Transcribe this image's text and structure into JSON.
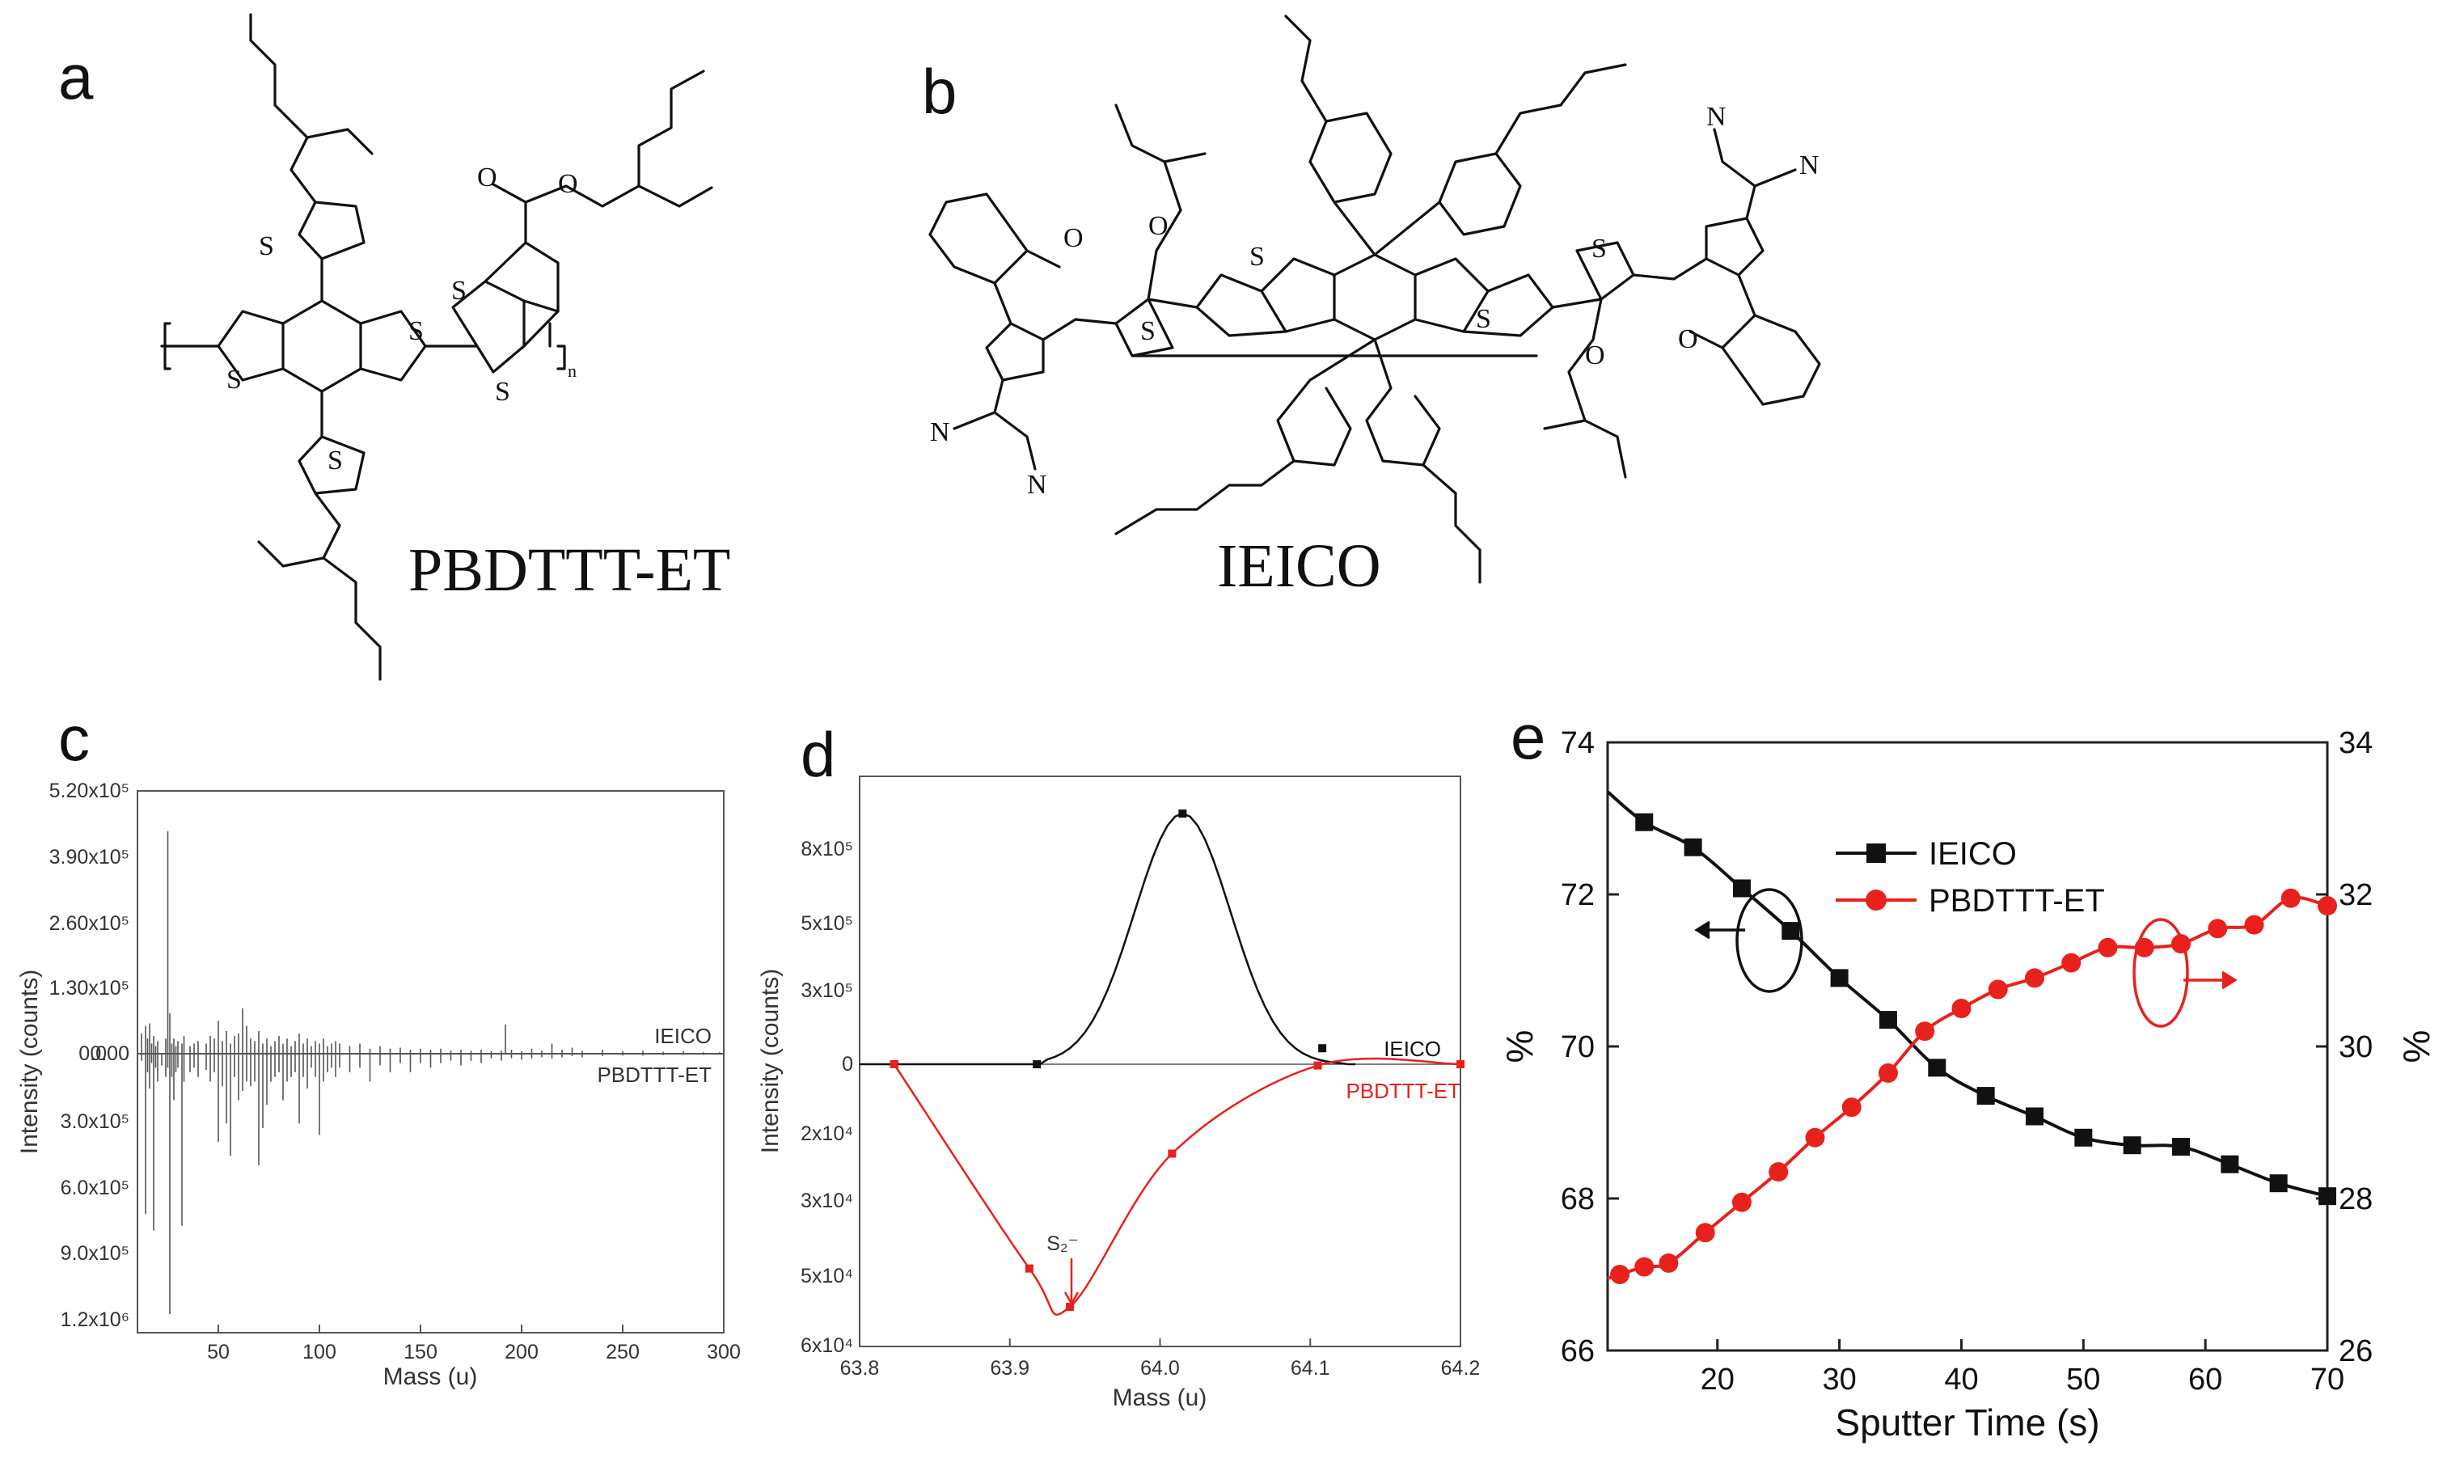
{
  "panels": {
    "a": {
      "label": "a",
      "compound": "PBDTTT-ET",
      "atoms": {
        "S": "S",
        "O": "O",
        "n": "n"
      }
    },
    "b": {
      "label": "b",
      "compound": "IEICO",
      "atoms": {
        "S": "S",
        "O": "O",
        "N": "N"
      }
    },
    "c": {
      "label": "c"
    },
    "d": {
      "label": "d"
    },
    "e": {
      "label": "e"
    }
  },
  "colors": {
    "black": "#111111",
    "red": "#e8211c",
    "gray": "#555555"
  },
  "chart_data": [
    {
      "id": "c",
      "type": "bar",
      "xlabel": "Mass (u)",
      "ylabel": "Intensity (counts)",
      "xlim": [
        10,
        300
      ],
      "xticks": [
        "50",
        "100",
        "150",
        "200",
        "250",
        "300"
      ],
      "yticks_top": [
        "5.20x10⁵",
        "3.90x10⁵",
        "2.60x10⁵",
        "1.30x10⁵",
        "0.00"
      ],
      "yticks_bottom": [
        "0.0",
        "3.0x10⁵",
        "6.0x10⁵",
        "9.0x10⁵",
        "1.2x10⁶"
      ],
      "series": [
        {
          "name": "IEICO",
          "direction": "up",
          "x": [
            12,
            14,
            15,
            16,
            17,
            18,
            19,
            20,
            24,
            25,
            26,
            27,
            28,
            29,
            30,
            32,
            33,
            36,
            38,
            40,
            44,
            46,
            48,
            50,
            52,
            54,
            56,
            58,
            60,
            62,
            64,
            66,
            68,
            70,
            72,
            74,
            76,
            78,
            80,
            82,
            84,
            86,
            88,
            90,
            92,
            94,
            96,
            98,
            100,
            102,
            104,
            106,
            108,
            110,
            115,
            120,
            125,
            130,
            135,
            140,
            145,
            150,
            155,
            160,
            165,
            170,
            175,
            180,
            185,
            190,
            192,
            195,
            200,
            205,
            210,
            215,
            220,
            225,
            230,
            240,
            250,
            260,
            270,
            280,
            290,
            298
          ],
          "values": [
            40000,
            55000,
            30000,
            60000,
            20000,
            35000,
            15000,
            25000,
            30000,
            440000,
            80000,
            20000,
            30000,
            15000,
            25000,
            20000,
            35000,
            15000,
            20000,
            25000,
            20000,
            35000,
            30000,
            65000,
            25000,
            45000,
            20000,
            35000,
            40000,
            90000,
            55000,
            30000,
            25000,
            45000,
            20000,
            30000,
            15000,
            25000,
            35000,
            20000,
            30000,
            15000,
            25000,
            40000,
            20000,
            30000,
            15000,
            25000,
            20000,
            30000,
            15000,
            20000,
            25000,
            20000,
            15000,
            20000,
            10000,
            15000,
            10000,
            12000,
            8000,
            10000,
            8000,
            10000,
            6000,
            8000,
            6000,
            8000,
            5000,
            6000,
            58000,
            8000,
            5000,
            10000,
            6000,
            20000,
            8000,
            12000,
            6000,
            8000,
            5000,
            6000,
            4000,
            5000,
            3000,
            3000
          ]
        },
        {
          "name": "PBDTTT-ET",
          "direction": "down",
          "x": [
            12,
            14,
            15,
            16,
            17,
            18,
            19,
            20,
            22,
            24,
            25,
            26,
            27,
            28,
            29,
            30,
            32,
            33,
            36,
            38,
            40,
            44,
            46,
            48,
            50,
            52,
            54,
            56,
            58,
            60,
            62,
            64,
            66,
            68,
            70,
            72,
            74,
            76,
            78,
            80,
            82,
            84,
            86,
            88,
            90,
            92,
            94,
            96,
            98,
            100,
            102,
            104,
            106,
            108,
            110,
            115,
            120,
            125,
            130,
            135,
            140,
            145,
            150,
            155,
            160,
            165,
            170,
            175,
            180,
            185,
            190,
            195,
            200,
            205,
            210,
            215,
            220,
            225,
            230,
            240,
            250,
            260,
            270,
            280,
            290,
            298
          ],
          "values": [
            30000,
            690000,
            80000,
            150000,
            40000,
            760000,
            60000,
            120000,
            50000,
            100000,
            60000,
            1120000,
            100000,
            200000,
            80000,
            60000,
            740000,
            120000,
            80000,
            60000,
            100000,
            70000,
            120000,
            80000,
            380000,
            140000,
            300000,
            440000,
            100000,
            200000,
            160000,
            120000,
            140000,
            120000,
            480000,
            320000,
            220000,
            120000,
            100000,
            80000,
            200000,
            120000,
            100000,
            80000,
            300000,
            100000,
            150000,
            60000,
            100000,
            350000,
            120000,
            80000,
            60000,
            100000,
            60000,
            80000,
            60000,
            120000,
            50000,
            80000,
            40000,
            80000,
            40000,
            60000,
            40000,
            30000,
            50000,
            30000,
            40000,
            20000,
            30000,
            20000,
            25000,
            20000,
            15000,
            20000,
            15000,
            10000,
            15000,
            10000,
            8000,
            8000,
            6000,
            5000,
            5000,
            4000
          ]
        }
      ]
    },
    {
      "id": "d",
      "type": "line",
      "xlabel": "Mass (u)",
      "ylabel": "Intensity (counts)",
      "xlim": [
        63.8,
        64.2
      ],
      "xticks": [
        "63.8",
        "63.9",
        "64.0",
        "64.1",
        "64.2"
      ],
      "yticks_top": [
        "8x10⁵",
        "5x10⁵",
        "3x10⁵",
        "0"
      ],
      "yticks_bottom": [
        "2x10⁴",
        "3x10⁴",
        "5x10⁴",
        "6x10⁴"
      ],
      "annotation": "S₂⁻",
      "series": [
        {
          "name": "IEICO",
          "color": "#111111",
          "x": [
            63.823,
            63.918,
            64.015,
            64.108
          ],
          "y": [
            0,
            0,
            940000,
            60000
          ]
        },
        {
          "name": "PBDTTT-ET",
          "color": "#e8211c",
          "x": [
            63.823,
            63.913,
            63.94,
            64.008,
            64.105,
            64.2
          ],
          "y": [
            0,
            48000,
            57000,
            21000,
            300,
            0
          ]
        }
      ]
    },
    {
      "id": "e",
      "type": "line",
      "xlabel": "Sputter Time (s)",
      "ylabel_left": "%",
      "ylabel_right": "%",
      "xlim": [
        11,
        70
      ],
      "ylim_left": [
        66,
        74
      ],
      "ylim_right": [
        26,
        34
      ],
      "xticks": [
        "20",
        "30",
        "40",
        "50",
        "60",
        "70"
      ],
      "yticks_left": [
        "66",
        "68",
        "70",
        "72",
        "74"
      ],
      "yticks_right": [
        "26",
        "28",
        "30",
        "32",
        "34"
      ],
      "series": [
        {
          "name": "IEICO",
          "color": "#111111",
          "axis": "left",
          "marker": "square",
          "x": [
            14,
            18,
            22,
            26,
            30,
            34,
            38,
            42,
            46,
            50,
            54,
            58,
            62,
            66,
            70
          ],
          "y": [
            72.95,
            72.62,
            72.08,
            71.52,
            70.9,
            70.35,
            69.72,
            69.35,
            69.08,
            68.8,
            68.7,
            68.68,
            68.45,
            68.2,
            68.03
          ]
        },
        {
          "name": "PBDTTT-ET",
          "color": "#e8211c",
          "axis": "right",
          "marker": "circle",
          "x": [
            12,
            14,
            16,
            19,
            22,
            25,
            28,
            31,
            34,
            37,
            40,
            43,
            46,
            49,
            52,
            55,
            58,
            61,
            64,
            67,
            70
          ],
          "y": [
            27.0,
            27.1,
            27.15,
            27.55,
            27.95,
            28.35,
            28.8,
            29.2,
            29.65,
            30.2,
            30.5,
            30.75,
            30.9,
            31.1,
            31.3,
            31.3,
            31.35,
            31.55,
            31.6,
            31.95,
            31.85
          ]
        }
      ]
    }
  ]
}
